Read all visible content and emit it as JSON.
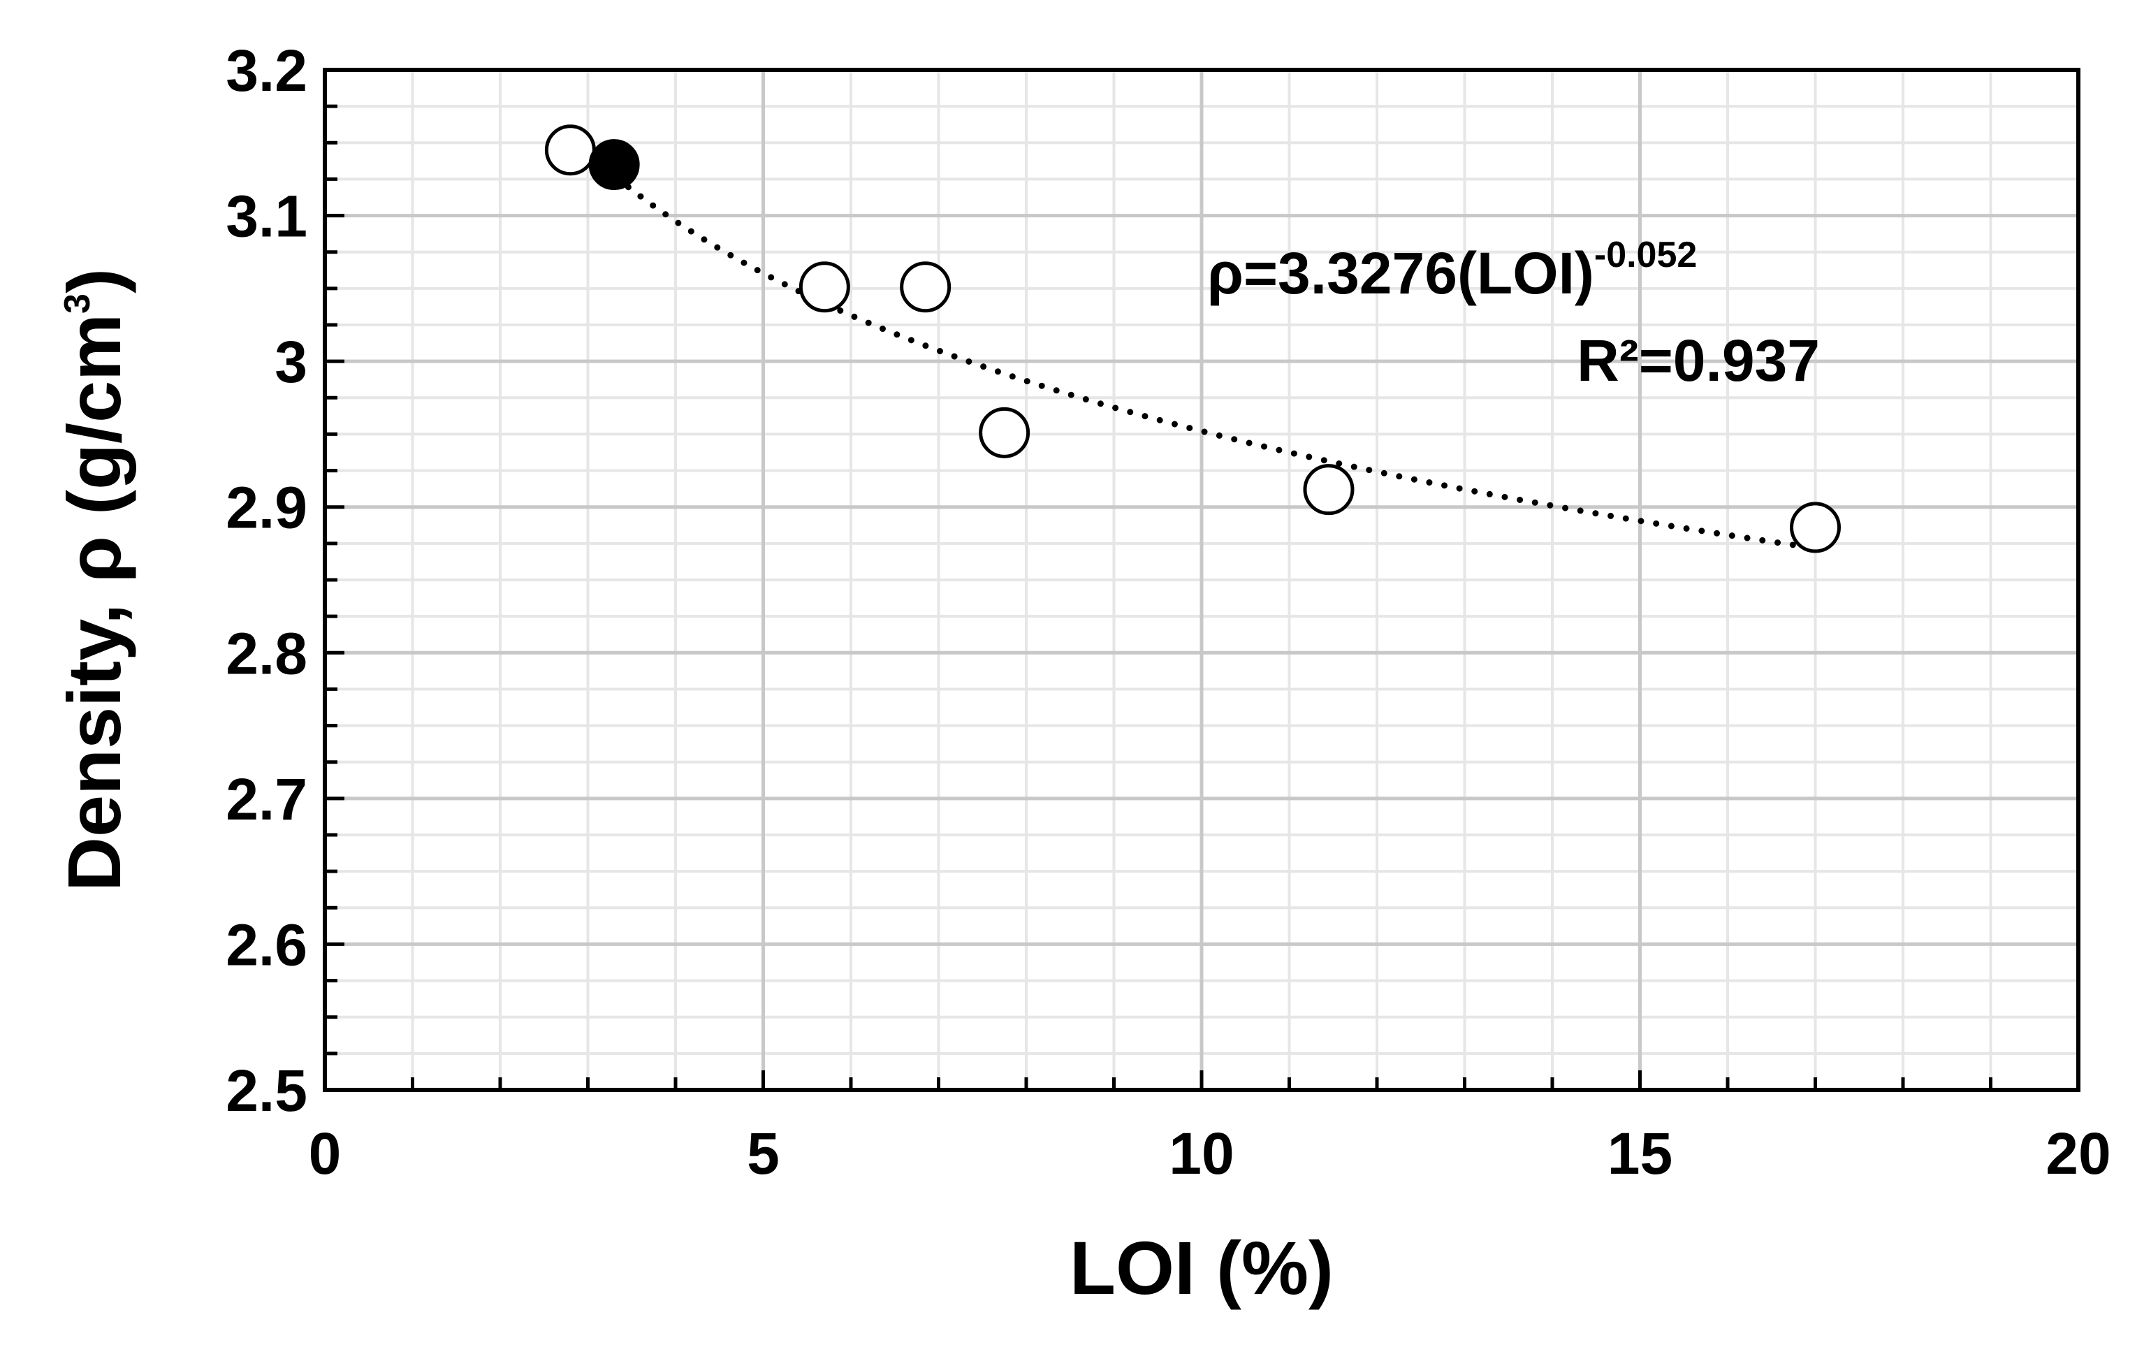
{
  "chart_data": {
    "type": "scatter",
    "x_axis": {
      "label": "LOI (%)",
      "range": [
        0,
        20
      ],
      "ticks": [
        "0",
        "5",
        "10",
        "15",
        "20"
      ]
    },
    "y_axis": {
      "label": "Density, ρ (g/cm",
      "label_superscript": "3",
      "label_suffix": ")",
      "range": [
        2.5,
        3.2
      ],
      "ticks": [
        "2.5",
        "2.6",
        "2.7",
        "2.8",
        "2.9",
        "3",
        "3.1",
        "3.2"
      ]
    },
    "grid": true,
    "series": [
      {
        "marker": "open-circle",
        "points": [
          {
            "x": 2.8,
            "y": 3.145
          },
          {
            "x": 5.7,
            "y": 3.051
          },
          {
            "x": 6.85,
            "y": 3.051
          },
          {
            "x": 7.75,
            "y": 2.951
          },
          {
            "x": 11.45,
            "y": 2.912
          },
          {
            "x": 17.0,
            "y": 2.886
          }
        ]
      },
      {
        "marker": "filled-circle",
        "points": [
          {
            "x": 3.3,
            "y": 3.135
          }
        ]
      }
    ],
    "trendline": {
      "type": "power",
      "coefficient": 3.3276,
      "exponent": -0.052,
      "x_range": [
        2.8,
        17.0
      ],
      "style": "dotted"
    },
    "annotations": {
      "equation_main": "ρ=3.3276(LOI)",
      "equation_exponent": "-0.052",
      "r_squared": "R²=0.937"
    }
  }
}
